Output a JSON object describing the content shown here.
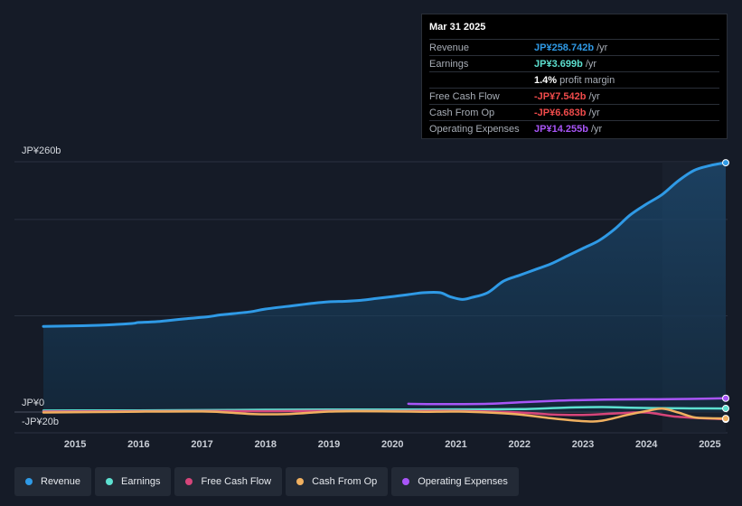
{
  "tooltip": {
    "date": "Mar 31 2025",
    "rows": [
      {
        "label": "Revenue",
        "value": "JP¥258.742b",
        "unit": "/yr",
        "color": "#2f9ae6"
      },
      {
        "label": "Earnings",
        "value": "JP¥3.699b",
        "unit": "/yr",
        "color": "#5de0d0"
      },
      {
        "label": "",
        "value": "1.4%",
        "unit": "profit margin",
        "color": "#ffffff"
      },
      {
        "label": "Free Cash Flow",
        "value": "-JP¥7.542b",
        "unit": "/yr",
        "color": "#f04b4b"
      },
      {
        "label": "Cash From Op",
        "value": "-JP¥6.683b",
        "unit": "/yr",
        "color": "#f04b4b"
      },
      {
        "label": "Operating Expenses",
        "value": "JP¥14.255b",
        "unit": "/yr",
        "color": "#a855f7"
      }
    ]
  },
  "legend": [
    {
      "label": "Revenue",
      "color": "#2f9ae6"
    },
    {
      "label": "Earnings",
      "color": "#5de0d0"
    },
    {
      "label": "Free Cash Flow",
      "color": "#d6457a"
    },
    {
      "label": "Cash From Op",
      "color": "#f0b060"
    },
    {
      "label": "Operating Expenses",
      "color": "#a855f7"
    }
  ],
  "chart_data": {
    "type": "line",
    "y_labels": {
      "top": "JP¥260b",
      "zero": "JP¥0",
      "bottom": "-JP¥20b"
    },
    "ylim": [
      -20,
      260
    ],
    "xlim": [
      2014.5,
      2025.25
    ],
    "x_ticks": [
      2015,
      2016,
      2017,
      2018,
      2019,
      2020,
      2021,
      2022,
      2023,
      2024,
      2025
    ],
    "x_tick_labels": [
      "2015",
      "2016",
      "2017",
      "2018",
      "2019",
      "2020",
      "2021",
      "2022",
      "2023",
      "2024",
      "2025"
    ],
    "forecast_start": 2024.25,
    "series": [
      {
        "name": "Revenue",
        "color": "#2f9ae6",
        "area": true,
        "points": [
          [
            2014.5,
            89
          ],
          [
            2015.0,
            89.5
          ],
          [
            2015.5,
            90.5
          ],
          [
            2015.9,
            92
          ],
          [
            2016.0,
            93
          ],
          [
            2016.3,
            94
          ],
          [
            2016.75,
            97
          ],
          [
            2017.1,
            99
          ],
          [
            2017.3,
            101
          ],
          [
            2017.75,
            104
          ],
          [
            2018.0,
            107
          ],
          [
            2018.5,
            111
          ],
          [
            2018.75,
            113
          ],
          [
            2019.0,
            114.5
          ],
          [
            2019.25,
            115
          ],
          [
            2019.5,
            116
          ],
          [
            2019.75,
            118
          ],
          [
            2020.0,
            120
          ],
          [
            2020.25,
            122
          ],
          [
            2020.5,
            124
          ],
          [
            2020.75,
            124
          ],
          [
            2020.9,
            120
          ],
          [
            2021.1,
            117
          ],
          [
            2021.25,
            119
          ],
          [
            2021.5,
            124
          ],
          [
            2021.75,
            136
          ],
          [
            2022.0,
            142
          ],
          [
            2022.25,
            148
          ],
          [
            2022.5,
            154
          ],
          [
            2022.75,
            162
          ],
          [
            2023.0,
            170
          ],
          [
            2023.25,
            178
          ],
          [
            2023.5,
            190
          ],
          [
            2023.75,
            205
          ],
          [
            2024.0,
            216
          ],
          [
            2024.25,
            226
          ],
          [
            2024.5,
            240
          ],
          [
            2024.75,
            251
          ],
          [
            2025.0,
            256
          ],
          [
            2025.25,
            259
          ]
        ]
      },
      {
        "name": "Earnings",
        "color": "#5de0d0",
        "area": false,
        "points": [
          [
            2014.5,
            1.5
          ],
          [
            2015.0,
            1.6
          ],
          [
            2016.0,
            1.7
          ],
          [
            2017.0,
            2
          ],
          [
            2018.0,
            2.3
          ],
          [
            2019.0,
            2.5
          ],
          [
            2020.0,
            2.6
          ],
          [
            2021.0,
            2.7
          ],
          [
            2022.0,
            3.0
          ],
          [
            2022.7,
            4.5
          ],
          [
            2023.3,
            5.2
          ],
          [
            2023.75,
            4.5
          ],
          [
            2024.25,
            4.0
          ],
          [
            2024.75,
            3.8
          ],
          [
            2025.25,
            3.7
          ]
        ]
      },
      {
        "name": "Free Cash Flow",
        "color": "#d6457a",
        "area": false,
        "points": [
          [
            2014.5,
            0.5
          ],
          [
            2016.0,
            0.8
          ],
          [
            2017.0,
            1.0
          ],
          [
            2018.0,
            0.8
          ],
          [
            2019.0,
            1.2
          ],
          [
            2020.0,
            1.0
          ],
          [
            2021.0,
            1.2
          ],
          [
            2022.0,
            -0.5
          ],
          [
            2022.5,
            -2.5
          ],
          [
            2023.0,
            -3.0
          ],
          [
            2023.5,
            -1.5
          ],
          [
            2024.0,
            -0.5
          ],
          [
            2024.5,
            -5
          ],
          [
            2025.25,
            -7.5
          ]
        ]
      },
      {
        "name": "Cash From Op",
        "color": "#f0b060",
        "area": false,
        "points": [
          [
            2014.5,
            -0.5
          ],
          [
            2016.0,
            0.4
          ],
          [
            2017.0,
            0.6
          ],
          [
            2017.4,
            -0.5
          ],
          [
            2017.75,
            -2.0
          ],
          [
            2018.0,
            -2.3
          ],
          [
            2018.4,
            -2.0
          ],
          [
            2018.75,
            -0.5
          ],
          [
            2019.0,
            0.5
          ],
          [
            2019.5,
            0.8
          ],
          [
            2020.0,
            0.6
          ],
          [
            2020.5,
            0.3
          ],
          [
            2021.0,
            0.5
          ],
          [
            2021.5,
            -0.5
          ],
          [
            2022.0,
            -2.5
          ],
          [
            2022.5,
            -6.5
          ],
          [
            2023.0,
            -9.5
          ],
          [
            2023.3,
            -9
          ],
          [
            2023.7,
            -3
          ],
          [
            2024.0,
            1.0
          ],
          [
            2024.25,
            3.5
          ],
          [
            2024.5,
            -0.5
          ],
          [
            2024.75,
            -5.5
          ],
          [
            2025.0,
            -6.5
          ],
          [
            2025.25,
            -6.7
          ]
        ]
      },
      {
        "name": "Operating Expenses",
        "color": "#a855f7",
        "area": false,
        "points": [
          [
            2020.25,
            8.5
          ],
          [
            2020.75,
            8.2
          ],
          [
            2021.5,
            8.5
          ],
          [
            2022.0,
            10
          ],
          [
            2022.5,
            11.5
          ],
          [
            2023.0,
            12.5
          ],
          [
            2023.5,
            13
          ],
          [
            2024.0,
            13.2
          ],
          [
            2024.5,
            13.5
          ],
          [
            2025.0,
            14
          ],
          [
            2025.25,
            14.3
          ]
        ]
      }
    ]
  }
}
